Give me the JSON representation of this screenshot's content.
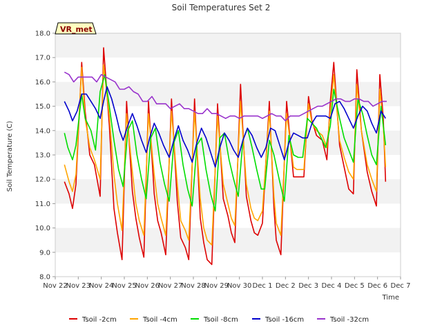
{
  "chart_data": {
    "type": "line",
    "title": "Soil Temperatures Set 2",
    "xlabel": "Time",
    "ylabel": "Soil Temperature (C)",
    "badge": "VR_met",
    "x_ticks": [
      "Nov 22",
      "Nov 23",
      "Nov 24",
      "Nov 25",
      "Nov 26",
      "Nov 27",
      "Nov 28",
      "Nov 29",
      "Nov 30",
      "Dec 1",
      "Dec 2",
      "Dec 3",
      "Dec 4",
      "Dec 5",
      "Dec 6",
      "Dec 7"
    ],
    "y_ticks": [
      "8.0",
      "9.0",
      "10.0",
      "11.0",
      "12.0",
      "13.0",
      "14.0",
      "15.0",
      "16.0",
      "17.0",
      "18.0"
    ],
    "xlim": [
      0,
      15
    ],
    "ylim": [
      8,
      18
    ],
    "grid": "horizontal bands",
    "legend_position": "bottom",
    "series": [
      {
        "name": "Tsoil -2cm",
        "color": "#dd0000",
        "x": [
          0.4,
          0.6,
          0.75,
          0.9,
          1.15,
          1.3,
          1.5,
          1.7,
          1.95,
          2.1,
          2.35,
          2.55,
          2.7,
          2.9,
          3.1,
          3.35,
          3.5,
          3.65,
          3.85,
          4.05,
          4.3,
          4.45,
          4.6,
          4.8,
          5.05,
          5.3,
          5.45,
          5.65,
          5.8,
          6.05,
          6.3,
          6.45,
          6.6,
          6.8,
          7.05,
          7.3,
          7.5,
          7.65,
          7.8,
          8.05,
          8.3,
          8.5,
          8.65,
          8.8,
          9.0,
          9.3,
          9.5,
          9.6,
          9.8,
          10.05,
          10.35,
          10.5,
          10.8,
          11.0,
          11.15,
          11.35,
          11.6,
          11.8,
          11.95,
          12.1,
          12.35,
          12.55,
          12.75,
          12.95,
          13.1,
          13.3,
          13.55,
          13.75,
          13.95,
          14.1,
          14.25,
          14.35
        ],
        "values": [
          11.9,
          11.4,
          10.8,
          11.8,
          16.8,
          14.8,
          13.0,
          12.6,
          11.3,
          17.4,
          14.2,
          10.8,
          9.8,
          8.7,
          15.2,
          11.5,
          10.4,
          9.6,
          8.8,
          15.2,
          11.4,
          10.3,
          9.8,
          8.9,
          15.3,
          11.1,
          9.6,
          9.2,
          8.7,
          15.3,
          10.4,
          9.4,
          8.7,
          8.5,
          15.1,
          11.2,
          10.5,
          9.8,
          9.4,
          15.9,
          11.3,
          10.3,
          9.8,
          9.7,
          10.2,
          15.2,
          10.8,
          9.5,
          8.9,
          15.2,
          12.1,
          12.1,
          12.1,
          15.4,
          14.4,
          13.8,
          13.6,
          12.8,
          15.2,
          16.8,
          13.4,
          12.5,
          11.6,
          11.4,
          16.5,
          14.0,
          12.3,
          11.5,
          10.9,
          16.3,
          14.5,
          11.9
        ]
      },
      {
        "name": "Tsoil -4cm",
        "color": "#ffa500",
        "x": [
          0.4,
          0.6,
          0.75,
          0.9,
          1.15,
          1.3,
          1.5,
          1.7,
          1.95,
          2.1,
          2.35,
          2.55,
          2.7,
          2.9,
          3.1,
          3.35,
          3.5,
          3.65,
          3.85,
          4.05,
          4.3,
          4.45,
          4.6,
          4.8,
          5.05,
          5.3,
          5.45,
          5.65,
          5.8,
          6.05,
          6.3,
          6.45,
          6.6,
          6.8,
          7.05,
          7.3,
          7.5,
          7.65,
          7.8,
          8.05,
          8.3,
          8.5,
          8.65,
          8.8,
          9.0,
          9.3,
          9.5,
          9.6,
          9.8,
          10.05,
          10.35,
          10.5,
          10.8,
          11.0,
          11.15,
          11.35,
          11.6,
          11.8,
          11.95,
          12.1,
          12.35,
          12.55,
          12.75,
          12.95,
          13.1,
          13.3,
          13.55,
          13.75,
          13.95,
          14.1,
          14.25,
          14.35
        ],
        "values": [
          12.6,
          11.9,
          11.5,
          12.2,
          16.6,
          14.5,
          13.3,
          12.8,
          12.0,
          16.7,
          14.6,
          12.2,
          11.0,
          9.9,
          14.7,
          12.3,
          11.0,
          10.3,
          9.7,
          14.7,
          12.2,
          11.0,
          10.4,
          9.7,
          14.8,
          11.8,
          10.3,
          9.9,
          9.5,
          14.8,
          11.2,
          10.0,
          9.5,
          9.3,
          14.6,
          11.8,
          11.0,
          10.4,
          10.1,
          15.2,
          11.8,
          10.8,
          10.4,
          10.3,
          10.7,
          14.8,
          11.3,
          10.2,
          9.7,
          14.7,
          12.5,
          12.4,
          12.4,
          15.1,
          14.3,
          14.0,
          13.8,
          13.3,
          14.8,
          16.3,
          13.6,
          12.9,
          12.3,
          12.0,
          15.9,
          14.0,
          12.6,
          12.0,
          11.5,
          15.7,
          14.2,
          12.5
        ]
      },
      {
        "name": "Tsoil -8cm",
        "color": "#00dd00",
        "x": [
          0.4,
          0.55,
          0.75,
          0.9,
          1.15,
          1.3,
          1.55,
          1.75,
          1.95,
          2.15,
          2.35,
          2.55,
          2.75,
          2.95,
          3.15,
          3.35,
          3.55,
          3.75,
          3.95,
          4.15,
          4.35,
          4.55,
          4.75,
          4.95,
          5.15,
          5.35,
          5.55,
          5.75,
          5.95,
          6.15,
          6.35,
          6.55,
          6.75,
          6.95,
          7.15,
          7.35,
          7.55,
          7.75,
          7.95,
          8.15,
          8.35,
          8.55,
          8.75,
          8.95,
          9.1,
          9.3,
          9.5,
          9.75,
          9.95,
          10.15,
          10.35,
          10.55,
          10.75,
          10.95,
          11.15,
          11.35,
          11.55,
          11.75,
          11.95,
          12.1,
          12.35,
          12.55,
          12.75,
          12.95,
          13.15,
          13.35,
          13.55,
          13.75,
          13.95,
          14.15,
          14.35
        ],
        "values": [
          13.9,
          13.3,
          12.8,
          13.4,
          15.5,
          14.5,
          14.0,
          13.2,
          15.6,
          16.3,
          15.0,
          13.6,
          12.4,
          11.7,
          14.0,
          14.4,
          13.0,
          12.0,
          11.2,
          13.7,
          14.1,
          12.7,
          11.8,
          11.1,
          13.5,
          14.0,
          12.6,
          11.6,
          10.9,
          13.4,
          13.7,
          12.4,
          11.4,
          10.7,
          13.7,
          13.9,
          12.8,
          12.0,
          11.3,
          13.6,
          14.1,
          13.3,
          12.4,
          11.6,
          11.6,
          13.6,
          13.0,
          11.9,
          11.1,
          13.8,
          13.0,
          12.9,
          12.9,
          14.5,
          14.3,
          14.1,
          13.7,
          13.3,
          14.2,
          15.7,
          14.5,
          13.7,
          13.2,
          12.7,
          15.3,
          14.7,
          13.8,
          13.0,
          12.6,
          15.0,
          13.4
        ]
      },
      {
        "name": "Tsoil -16cm",
        "color": "#0000cc",
        "x": [
          0.4,
          0.6,
          0.75,
          0.95,
          1.15,
          1.35,
          1.55,
          1.75,
          1.95,
          2.1,
          2.25,
          2.45,
          2.65,
          2.8,
          2.95,
          3.15,
          3.35,
          3.55,
          3.75,
          3.95,
          4.1,
          4.3,
          4.5,
          4.7,
          4.95,
          5.15,
          5.35,
          5.55,
          5.75,
          5.95,
          6.15,
          6.35,
          6.55,
          6.75,
          6.95,
          7.15,
          7.35,
          7.55,
          7.75,
          7.95,
          8.15,
          8.35,
          8.55,
          8.75,
          8.95,
          9.15,
          9.35,
          9.55,
          9.75,
          9.95,
          10.15,
          10.35,
          10.55,
          10.75,
          10.95,
          11.15,
          11.35,
          11.55,
          11.75,
          11.95,
          12.15,
          12.35,
          12.55,
          12.75,
          12.95,
          13.15,
          13.35,
          13.55,
          13.75,
          13.95,
          14.15,
          14.35
        ],
        "values": [
          15.2,
          14.8,
          14.4,
          14.8,
          15.5,
          15.5,
          15.2,
          14.9,
          14.5,
          15.2,
          15.8,
          15.3,
          14.6,
          14.0,
          13.6,
          14.2,
          14.7,
          14.2,
          13.6,
          13.1,
          13.7,
          14.3,
          13.9,
          13.4,
          12.9,
          13.6,
          14.2,
          13.6,
          13.2,
          12.7,
          13.5,
          14.1,
          13.7,
          13.1,
          12.5,
          13.3,
          13.9,
          13.6,
          13.2,
          12.9,
          13.6,
          14.1,
          13.8,
          13.3,
          12.9,
          13.3,
          14.1,
          14.0,
          13.4,
          12.8,
          13.5,
          13.9,
          13.8,
          13.7,
          13.7,
          14.3,
          14.6,
          14.6,
          14.6,
          14.5,
          15.1,
          15.2,
          14.9,
          14.5,
          14.1,
          14.6,
          15.0,
          14.8,
          14.3,
          13.9,
          14.8,
          14.5
        ]
      },
      {
        "name": "Tsoil -32cm",
        "color": "#9933cc",
        "x": [
          0.4,
          0.6,
          0.8,
          1.0,
          1.2,
          1.4,
          1.6,
          1.8,
          2.0,
          2.2,
          2.4,
          2.6,
          2.8,
          3.0,
          3.2,
          3.4,
          3.6,
          3.8,
          4.0,
          4.2,
          4.4,
          4.6,
          4.8,
          5.0,
          5.2,
          5.4,
          5.6,
          5.8,
          6.0,
          6.2,
          6.4,
          6.6,
          6.8,
          7.0,
          7.2,
          7.4,
          7.6,
          7.8,
          8.0,
          8.2,
          8.4,
          8.6,
          8.8,
          9.0,
          9.2,
          9.4,
          9.6,
          9.8,
          10.0,
          10.2,
          10.4,
          10.6,
          10.8,
          11.0,
          11.2,
          11.4,
          11.6,
          11.8,
          12.0,
          12.2,
          12.4,
          12.6,
          12.8,
          13.0,
          13.2,
          13.4,
          13.6,
          13.8,
          14.0,
          14.2,
          14.4
        ],
        "values": [
          16.4,
          16.3,
          16.0,
          16.2,
          16.2,
          16.2,
          16.2,
          16.0,
          16.3,
          16.2,
          16.1,
          16.0,
          15.7,
          15.7,
          15.8,
          15.6,
          15.5,
          15.2,
          15.2,
          15.4,
          15.1,
          15.1,
          15.1,
          14.9,
          15.0,
          15.1,
          14.9,
          14.9,
          14.8,
          14.7,
          14.7,
          14.9,
          14.7,
          14.7,
          14.6,
          14.5,
          14.6,
          14.6,
          14.5,
          14.6,
          14.6,
          14.6,
          14.6,
          14.5,
          14.6,
          14.7,
          14.6,
          14.6,
          14.4,
          14.6,
          14.6,
          14.6,
          14.7,
          14.8,
          14.9,
          15.0,
          15.0,
          15.1,
          15.2,
          15.3,
          15.3,
          15.2,
          15.2,
          15.3,
          15.3,
          15.2,
          15.2,
          15.0,
          15.1,
          15.2,
          15.2
        ]
      }
    ]
  }
}
